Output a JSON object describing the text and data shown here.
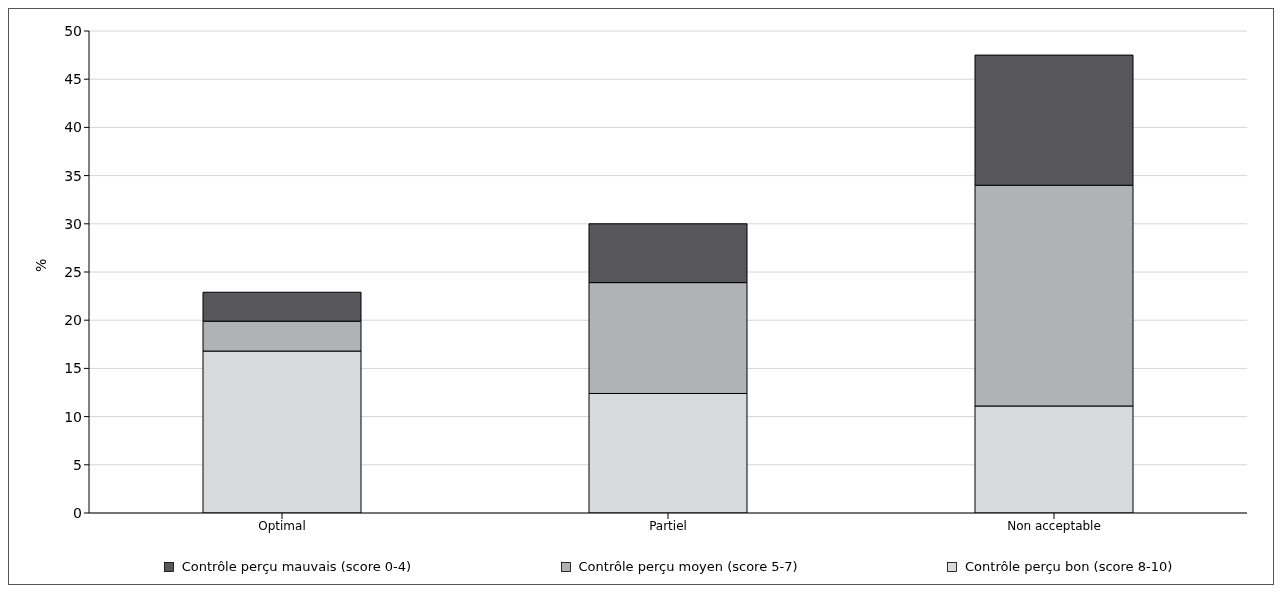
{
  "chart_data": {
    "type": "bar",
    "stacked": true,
    "ylabel": "%",
    "categories": [
      "Optimal",
      "Partiel",
      "Non acceptable"
    ],
    "series": [
      {
        "name": "Contrôle perçu bon (score 8-10)",
        "color": "#d9dadc",
        "values": [
          16.8,
          12.4,
          11.1
        ]
      },
      {
        "name": "Contrôle perçu moyen (score 5-7)",
        "color": "#b1b2b4",
        "values": [
          3.1,
          11.5,
          22.9
        ]
      },
      {
        "name": "Contrôle perçu mauvais (score 0-4)",
        "color": "#58585a",
        "values": [
          3.0,
          6.1,
          13.5
        ]
      }
    ],
    "ylim": [
      0,
      50
    ],
    "yticks": [
      0,
      5,
      10,
      15,
      20,
      25,
      30,
      35,
      40,
      45,
      50
    ],
    "grid": "y",
    "legend": "bottom"
  }
}
